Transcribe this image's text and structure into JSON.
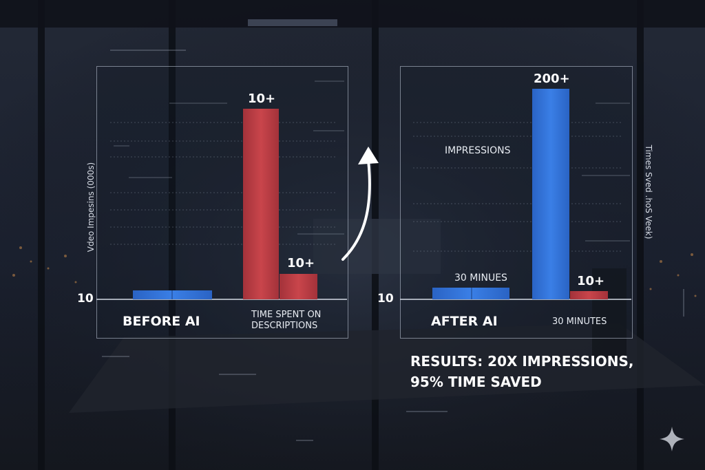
{
  "chart_data": [
    {
      "type": "bar",
      "ylabel": "Vdeo Impesins (000s)",
      "ytick_label": "10",
      "category_labels": [
        "BEFORE AI",
        "TIME SPENT ON DESCRIPTIONS"
      ],
      "series": [
        {
          "color": "#2f6fd1",
          "values": [
            1.3
          ]
        },
        {
          "color": "#b53a40",
          "values": [
            10,
            1.5
          ]
        }
      ],
      "data_labels": [
        "10+",
        "10+"
      ],
      "ylim": [
        0,
        11
      ]
    },
    {
      "type": "bar",
      "ylabel": "Times Sved  .hoS Veek)",
      "ytick_label": "10",
      "category_labels": [
        "AFTER AI",
        "30 MINUTES"
      ],
      "series": [
        {
          "color": "#2f6fd1",
          "values": [
            1.2,
            200
          ]
        },
        {
          "color": "#b53a40",
          "values": [
            10
          ]
        }
      ],
      "data_labels": [
        "30 MINUES",
        "200+",
        "10+"
      ],
      "annotation": "IMPRESSIONS",
      "ylim": [
        0,
        220
      ]
    }
  ],
  "left": {
    "ylabel": "Vdeo Impesins (000s)",
    "ytick": "10",
    "bar_label_tall": "10+",
    "bar_label_short": "10+",
    "cat_before": "BEFORE AI",
    "cat_time_1": "TIME SPENT ON",
    "cat_time_2": "DESCRIPTIONS"
  },
  "right": {
    "ylabel": "Times Sved  .hoS Veek)",
    "ytick": "10",
    "impressions": "IMPRESSIONS",
    "bar_label_tall": "200+",
    "bar_label_short": "10+",
    "bar_label_low": "30 MINUES",
    "cat_after": "AFTER AI",
    "cat_minutes": "30 MINUTES"
  },
  "results": {
    "line1": "RESULTS: 20X IMPRESSIONS,",
    "line2": "95% TIME SAVED"
  },
  "colors": {
    "blue": "#2f6fd1",
    "red": "#b53a40",
    "background": "#1a1f2b"
  },
  "icons": [
    "curved-arrow-icon",
    "sparkle-icon"
  ]
}
